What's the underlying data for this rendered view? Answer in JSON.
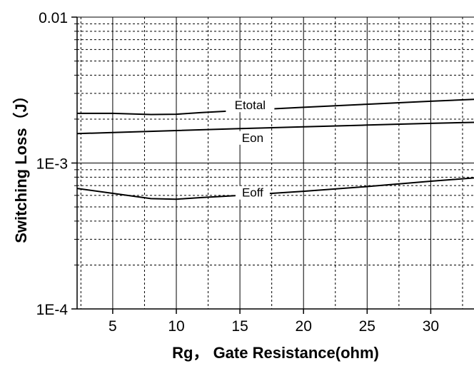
{
  "chart_data": {
    "type": "line",
    "title": "",
    "xlabel": "Rg， Gate Resistance(ohm)",
    "ylabel": "Switching Loss（J）",
    "xlim": [
      2.2,
      33.4
    ],
    "ylim": [
      0.0001,
      0.01
    ],
    "yscale": "log",
    "grid": true,
    "x_ticks": [
      5,
      10,
      15,
      20,
      25,
      30
    ],
    "x_tick_labels": [
      "5",
      "10",
      "15",
      "20",
      "25",
      "30"
    ],
    "y_ticks": [
      0.0001,
      0.001,
      0.01
    ],
    "y_tick_labels": [
      "1E-4",
      "1E-3",
      "0.01"
    ],
    "series": [
      {
        "name": "Etotal",
        "x": [
          2.2,
          5,
          8,
          10,
          12,
          15,
          20,
          25,
          30,
          33.4
        ],
        "y": [
          0.00219,
          0.00219,
          0.00215,
          0.00216,
          0.00222,
          0.00229,
          0.00241,
          0.00253,
          0.00265,
          0.00273
        ]
      },
      {
        "name": "Eon",
        "x": [
          2.2,
          5,
          10,
          15,
          20,
          25,
          30,
          33.4
        ],
        "y": [
          0.00159,
          0.00162,
          0.00167,
          0.00172,
          0.00177,
          0.00182,
          0.00187,
          0.0019
        ]
      },
      {
        "name": "Eoff",
        "x": [
          2.2,
          5,
          8,
          10,
          12,
          15,
          20,
          25,
          30,
          33.4
        ],
        "y": [
          0.00067,
          0.00062,
          0.00057,
          0.000565,
          0.00058,
          0.0006,
          0.00064,
          0.00069,
          0.00075,
          0.00079
        ]
      }
    ],
    "annotations": [
      {
        "text": "Etotal",
        "series": "Etotal",
        "x": 15.8
      },
      {
        "text": "Eon",
        "series": "Eon",
        "x": 16.0
      },
      {
        "text": "Eoff",
        "series": "Eoff",
        "x": 16.0
      }
    ]
  }
}
